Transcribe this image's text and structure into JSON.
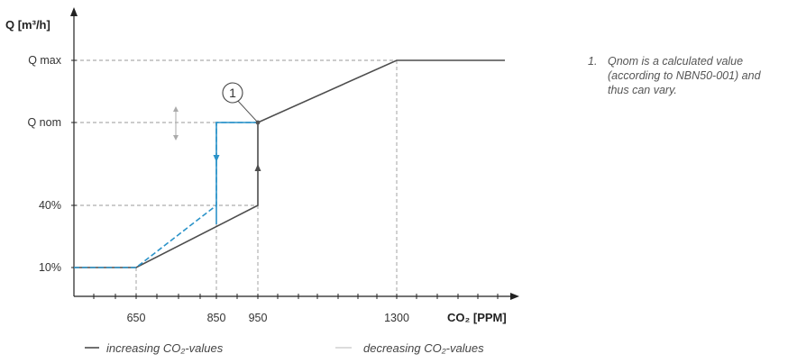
{
  "chart_data": {
    "type": "line",
    "y_axis_label": "Q [m³/h]",
    "x_axis_label": "CO₂ [PPM]",
    "x_ticks": [
      "650",
      "850",
      "950",
      "1300"
    ],
    "y_ticks": [
      "10%",
      "40%",
      "Q nom",
      "Q max"
    ],
    "series": [
      {
        "name": "increasing CO₂-values",
        "color": "#4d4d4d",
        "points": [
          {
            "x": 500,
            "y": "10%"
          },
          {
            "x": 650,
            "y": "10%"
          },
          {
            "x": 950,
            "y": "40%"
          },
          {
            "x": 950,
            "y": "Q nom"
          },
          {
            "x": 1300,
            "y": "Q max"
          },
          {
            "x": 1580,
            "y": "Q max"
          }
        ]
      },
      {
        "name": "decreasing CO₂-values",
        "color": "#2b93c9",
        "points": [
          {
            "x": 500,
            "y": "10%"
          },
          {
            "x": 650,
            "y": "10%"
          },
          {
            "x": 850,
            "y": "40%"
          },
          {
            "x": 850,
            "y": "Q nom"
          },
          {
            "x": 950,
            "y": "Q nom"
          }
        ]
      }
    ],
    "marker_label": "1",
    "legend": {
      "increasing": "increasing CO₂-values",
      "decreasing": "decreasing CO₂-values"
    }
  },
  "note": {
    "number": "1.",
    "text": "Qnom is a calculated value (according to NBN50-001) and thus can vary."
  }
}
